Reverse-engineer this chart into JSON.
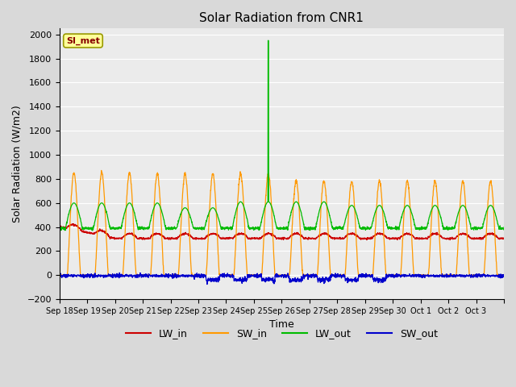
{
  "title": "Solar Radiation from CNR1",
  "xlabel": "Time",
  "ylabel": "Solar Radiation (W/m2)",
  "ylim": [
    -200,
    2050
  ],
  "yticks": [
    -200,
    0,
    200,
    400,
    600,
    800,
    1000,
    1200,
    1400,
    1600,
    1800,
    2000
  ],
  "station_label": "SI_met",
  "legend_labels": [
    "LW_in",
    "SW_in",
    "LW_out",
    "SW_out"
  ],
  "colors": {
    "LW_in": "#cc0000",
    "SW_in": "#ff9900",
    "LW_out": "#00bb00",
    "SW_out": "#0000cc"
  },
  "bg_color": "#d9d9d9",
  "axes_bg": "#ebebeb",
  "n_days": 16,
  "start_day": 18,
  "spike_day": 7,
  "spike_value": 1950,
  "pts_per_day": 144,
  "x_tick_positions": [
    0,
    1,
    2,
    3,
    4,
    5,
    6,
    7,
    8,
    9,
    10,
    11,
    12,
    13,
    14,
    15,
    16
  ],
  "x_tick_labels": [
    "Sep 18",
    "Sep 19",
    "Sep 20",
    "Sep 21",
    "Sep 22",
    "Sep 23",
    "Sep 24",
    "Sep 25",
    "Sep 26",
    "Sep 27",
    "Sep 28",
    "Sep 29",
    "Sep 30",
    "Oct 1",
    "Oct 2",
    "Oct 3",
    ""
  ]
}
